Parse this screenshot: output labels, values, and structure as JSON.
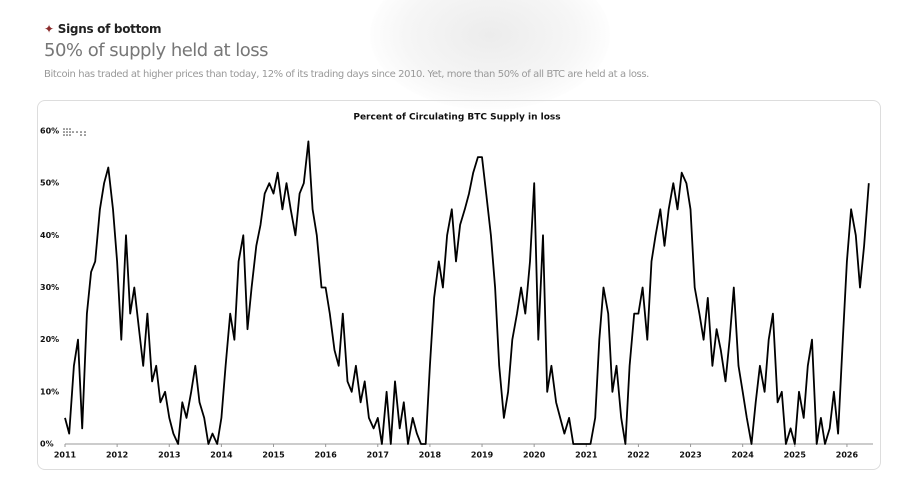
{
  "header": {
    "kicker": "Signs of bottom",
    "title": "50% of supply held at loss",
    "subtitle": "Bitcoin has traded at higher prices than today, 12% of its trading days since 2010. Yet, more than 50% of all BTC are held at a loss."
  },
  "chart_data": {
    "type": "line",
    "title": "Percent of Circulating BTC Supply in loss",
    "color": "#000000",
    "x": [
      2011.0,
      2011.08,
      2011.17,
      2011.25,
      2011.33,
      2011.42,
      2011.5,
      2011.58,
      2011.67,
      2011.75,
      2011.83,
      2011.92,
      2012.0,
      2012.08,
      2012.17,
      2012.25,
      2012.33,
      2012.42,
      2012.5,
      2012.58,
      2012.67,
      2012.75,
      2012.83,
      2012.92,
      2013.0,
      2013.08,
      2013.17,
      2013.25,
      2013.33,
      2013.42,
      2013.5,
      2013.58,
      2013.67,
      2013.75,
      2013.83,
      2013.92,
      2014.0,
      2014.08,
      2014.17,
      2014.25,
      2014.33,
      2014.42,
      2014.5,
      2014.58,
      2014.67,
      2014.75,
      2014.83,
      2014.92,
      2015.0,
      2015.08,
      2015.17,
      2015.25,
      2015.33,
      2015.42,
      2015.5,
      2015.58,
      2015.67,
      2015.75,
      2015.83,
      2015.92,
      2016.0,
      2016.08,
      2016.17,
      2016.25,
      2016.33,
      2016.42,
      2016.5,
      2016.58,
      2016.67,
      2016.75,
      2016.83,
      2016.92,
      2017.0,
      2017.08,
      2017.17,
      2017.25,
      2017.33,
      2017.42,
      2017.5,
      2017.58,
      2017.67,
      2017.75,
      2017.83,
      2017.92,
      2018.0,
      2018.08,
      2018.17,
      2018.25,
      2018.33,
      2018.42,
      2018.5,
      2018.58,
      2018.67,
      2018.75,
      2018.83,
      2018.92,
      2019.0,
      2019.08,
      2019.17,
      2019.25,
      2019.33,
      2019.42,
      2019.5,
      2019.58,
      2019.67,
      2019.75,
      2019.83,
      2019.92,
      2020.0,
      2020.08,
      2020.17,
      2020.25,
      2020.33,
      2020.42,
      2020.5,
      2020.58,
      2020.67,
      2020.75,
      2020.83,
      2020.92,
      2021.0,
      2021.08,
      2021.17,
      2021.25,
      2021.33,
      2021.42,
      2021.5,
      2021.58,
      2021.67,
      2021.75,
      2021.83,
      2021.92,
      2022.0,
      2022.08,
      2022.17,
      2022.25,
      2022.33,
      2022.42,
      2022.5,
      2022.58,
      2022.67,
      2022.75,
      2022.83,
      2022.92,
      2023.0,
      2023.08,
      2023.17,
      2023.25,
      2023.33,
      2023.42,
      2023.5,
      2023.58,
      2023.67,
      2023.75,
      2023.83,
      2023.92,
      2024.0,
      2024.08,
      2024.17,
      2024.25,
      2024.33,
      2024.42,
      2024.5,
      2024.58,
      2024.67,
      2024.75,
      2024.83,
      2024.92,
      2025.0,
      2025.08,
      2025.17,
      2025.25,
      2025.33,
      2025.42,
      2025.5,
      2025.58,
      2025.67,
      2025.75,
      2025.83,
      2025.92,
      2026.0,
      2026.08,
      2026.17,
      2026.25,
      2026.33,
      2026.42
    ],
    "values": [
      5,
      2,
      15,
      20,
      3,
      25,
      33,
      35,
      45,
      50,
      53,
      45,
      35,
      20,
      40,
      25,
      30,
      22,
      15,
      25,
      12,
      15,
      8,
      10,
      5,
      2,
      0,
      8,
      5,
      10,
      15,
      8,
      5,
      0,
      2,
      0,
      5,
      15,
      25,
      20,
      35,
      40,
      22,
      30,
      38,
      42,
      48,
      50,
      48,
      52,
      45,
      50,
      45,
      40,
      48,
      50,
      58,
      45,
      40,
      30,
      30,
      25,
      18,
      15,
      25,
      12,
      10,
      15,
      8,
      12,
      5,
      3,
      5,
      0,
      10,
      0,
      12,
      3,
      8,
      0,
      5,
      2,
      0,
      0,
      15,
      28,
      35,
      30,
      40,
      45,
      35,
      42,
      45,
      48,
      52,
      55,
      55,
      48,
      40,
      30,
      15,
      5,
      10,
      20,
      25,
      30,
      25,
      35,
      50,
      20,
      40,
      10,
      15,
      8,
      5,
      2,
      5,
      0,
      0,
      0,
      0,
      0,
      5,
      20,
      30,
      25,
      10,
      15,
      5,
      0,
      15,
      25,
      25,
      30,
      20,
      35,
      40,
      45,
      38,
      45,
      50,
      45,
      52,
      50,
      45,
      30,
      25,
      20,
      28,
      15,
      22,
      18,
      12,
      20,
      30,
      15,
      10,
      5,
      0,
      8,
      15,
      10,
      20,
      25,
      8,
      10,
      0,
      3,
      0,
      10,
      5,
      15,
      20,
      0,
      5,
      0,
      3,
      10,
      2,
      20,
      35,
      45,
      40,
      30,
      38,
      50
    ],
    "xlim": [
      2011,
      2026.5
    ],
    "xticks": [
      2011,
      2012,
      2013,
      2014,
      2015,
      2016,
      2017,
      2018,
      2019,
      2020,
      2021,
      2022,
      2023,
      2024,
      2025,
      2026
    ],
    "ylim": [
      0,
      60
    ],
    "yticks": [
      {
        "value": 0,
        "label": "0%"
      },
      {
        "value": 10,
        "label": "10%"
      },
      {
        "value": 20,
        "label": "20%"
      },
      {
        "value": 30,
        "label": "30%"
      },
      {
        "value": 40,
        "label": "40%"
      },
      {
        "value": 50,
        "label": "50%"
      },
      {
        "value": 60,
        "label": "60%"
      }
    ]
  }
}
